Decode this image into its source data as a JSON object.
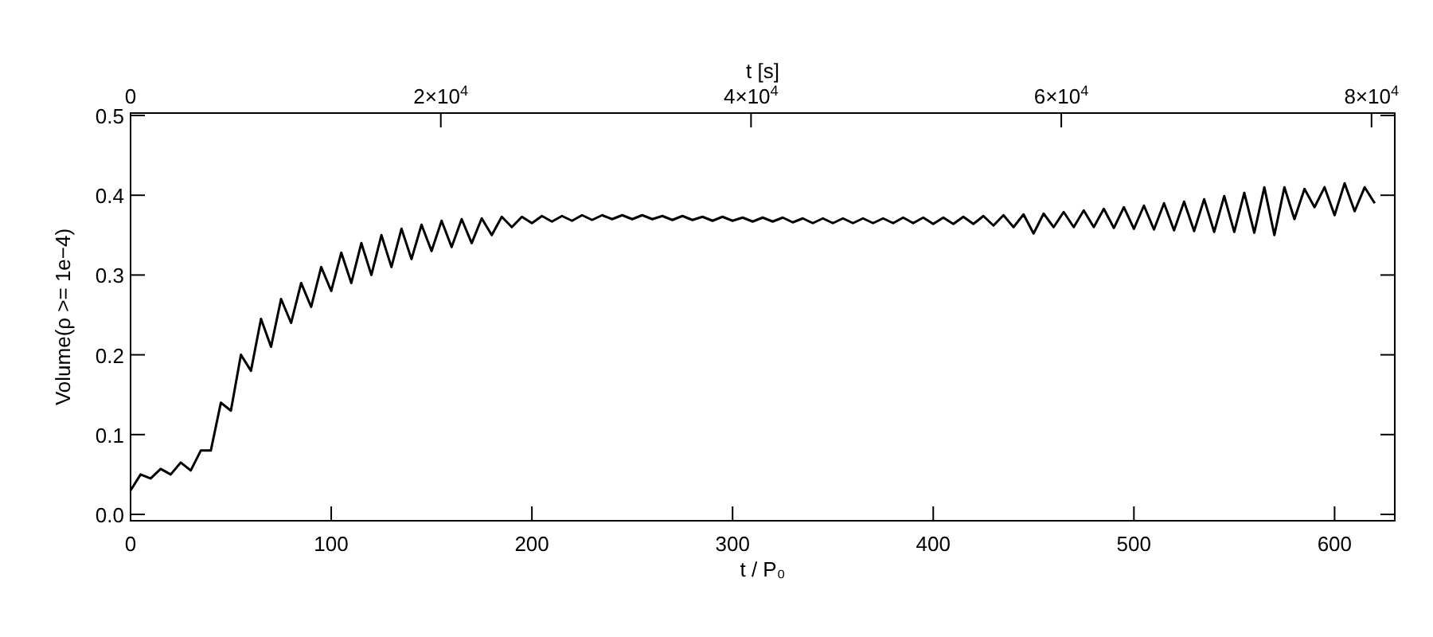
{
  "chart_data": {
    "type": "line",
    "xlabel": "t / P₀",
    "ylabel": "Volume(ρ >= 1e−4)",
    "x2label": "t [s]",
    "xlim": [
      0,
      630
    ],
    "xticks": [
      0,
      100,
      200,
      300,
      400,
      500,
      600
    ],
    "ylim": [
      -0.008,
      0.503
    ],
    "yticks": [
      {
        "value": 0,
        "label": "0.0"
      },
      {
        "value": 0.1,
        "label": "0.1"
      },
      {
        "value": 0.2,
        "label": "0.2"
      },
      {
        "value": 0.3,
        "label": "0.3"
      },
      {
        "value": 0.4,
        "label": "0.4"
      },
      {
        "value": 0.5,
        "label": "0.5"
      }
    ],
    "x2lim": [
      0,
      81500
    ],
    "x2ticks": [
      0,
      {
        "value": 20000,
        "label": "2×10$^{4}$"
      },
      {
        "value": 40000,
        "label": "4×10$^{4}$"
      },
      {
        "value": 60000,
        "label": "6×10$^{4}$"
      },
      {
        "value": 80000,
        "label": "8×10$^{4}$"
      }
    ],
    "x": [
      0,
      5,
      10,
      15,
      20,
      25,
      30,
      35,
      40,
      45,
      50,
      55,
      60,
      65,
      70,
      75,
      80,
      85,
      90,
      95,
      100,
      105,
      110,
      115,
      120,
      125,
      130,
      135,
      140,
      145,
      150,
      155,
      160,
      165,
      170,
      175,
      180,
      185,
      190,
      195,
      200,
      205,
      210,
      215,
      220,
      225,
      230,
      235,
      240,
      245,
      250,
      255,
      260,
      265,
      270,
      275,
      280,
      285,
      290,
      295,
      300,
      305,
      310,
      315,
      320,
      325,
      330,
      335,
      340,
      345,
      350,
      355,
      360,
      365,
      370,
      375,
      380,
      385,
      390,
      395,
      400,
      405,
      410,
      415,
      420,
      425,
      430,
      435,
      440,
      445,
      450,
      455,
      460,
      465,
      470,
      475,
      480,
      485,
      490,
      495,
      500,
      505,
      510,
      515,
      520,
      525,
      530,
      535,
      540,
      545,
      550,
      555,
      560,
      565,
      570,
      575,
      580,
      585,
      590,
      595,
      600,
      605,
      610,
      615,
      620
    ],
    "series": [
      {
        "color": "#000000",
        "values": [
          0.03,
          0.05,
          0.045,
          0.057,
          0.05,
          0.065,
          0.055,
          0.08,
          0.08,
          0.14,
          0.13,
          0.2,
          0.18,
          0.245,
          0.21,
          0.27,
          0.24,
          0.29,
          0.26,
          0.31,
          0.28,
          0.328,
          0.29,
          0.34,
          0.3,
          0.35,
          0.31,
          0.358,
          0.32,
          0.363,
          0.33,
          0.368,
          0.335,
          0.37,
          0.34,
          0.371,
          0.35,
          0.373,
          0.36,
          0.373,
          0.365,
          0.374,
          0.367,
          0.374,
          0.368,
          0.375,
          0.369,
          0.375,
          0.37,
          0.375,
          0.37,
          0.375,
          0.37,
          0.374,
          0.369,
          0.374,
          0.369,
          0.373,
          0.368,
          0.373,
          0.368,
          0.372,
          0.367,
          0.372,
          0.367,
          0.372,
          0.366,
          0.371,
          0.365,
          0.371,
          0.365,
          0.371,
          0.365,
          0.371,
          0.365,
          0.371,
          0.365,
          0.372,
          0.365,
          0.372,
          0.364,
          0.372,
          0.364,
          0.373,
          0.364,
          0.374,
          0.362,
          0.375,
          0.36,
          0.376,
          0.352,
          0.377,
          0.36,
          0.379,
          0.36,
          0.381,
          0.36,
          0.383,
          0.359,
          0.385,
          0.358,
          0.387,
          0.357,
          0.39,
          0.356,
          0.392,
          0.355,
          0.395,
          0.354,
          0.399,
          0.354,
          0.403,
          0.353,
          0.41,
          0.35,
          0.41,
          0.37,
          0.408,
          0.385,
          0.41,
          0.375,
          0.415,
          0.38,
          0.41,
          0.39
        ]
      }
    ]
  }
}
